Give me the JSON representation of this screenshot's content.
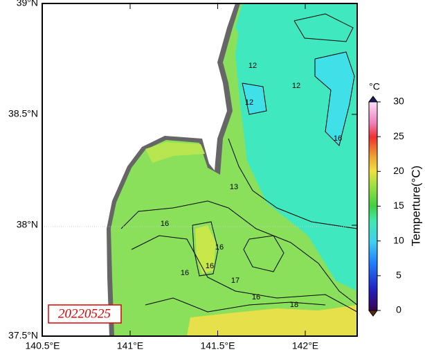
{
  "map": {
    "date_label": "20220525",
    "lat_ticks": [
      {
        "value": 39,
        "label": "39°N"
      },
      {
        "value": 38.5,
        "label": "38.5°N"
      },
      {
        "value": 38,
        "label": "38°N"
      },
      {
        "value": 37.5,
        "label": "37.5°N"
      }
    ],
    "lon_ticks": [
      {
        "value": 140.5,
        "label": "140.5°E"
      },
      {
        "value": 141,
        "label": "141°E"
      },
      {
        "value": 141.5,
        "label": "141.5°E"
      },
      {
        "value": 142,
        "label": "142°E"
      }
    ],
    "contour_labels": [
      "13",
      "12",
      "12",
      "12",
      "16",
      "16",
      "16",
      "16",
      "17",
      "18",
      "16",
      "16"
    ],
    "colorbar": {
      "unit": "°C",
      "label": "Temperture(°C)",
      "range": [
        0,
        30
      ],
      "ticks": [
        0,
        5,
        10,
        15,
        20,
        25,
        30
      ]
    }
  }
}
